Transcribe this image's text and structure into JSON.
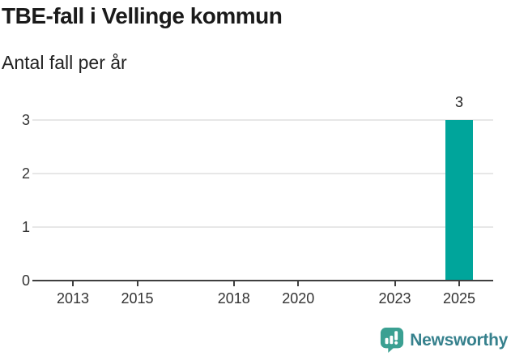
{
  "header": {
    "title": "TBE-fall i Vellinge kommun",
    "subtitle": "Antal fall per år"
  },
  "chart_data": {
    "type": "bar",
    "title": "TBE-fall i Vellinge kommun",
    "subtitle": "Antal fall per år",
    "xlabel": "",
    "ylabel": "Antal fall per år",
    "ylim": [
      0,
      3
    ],
    "y_ticks": [
      0,
      1,
      2,
      3
    ],
    "x_ticks": [
      2013,
      2015,
      2018,
      2020,
      2023,
      2025
    ],
    "x_domain": [
      2011.7,
      2026.1
    ],
    "grid": "horizontal-only",
    "legend": "none",
    "bars": [
      {
        "x": 2025,
        "value": 3,
        "label": "3"
      }
    ],
    "colors": {
      "bar": "#00a59b",
      "gridline": "#e7e7e7",
      "axis": "#3f3f3f",
      "tick_text": "#333333"
    }
  },
  "footer": {
    "brand": "Newsworthy",
    "icon": "newsworthy-speech-bubble-chart-icon",
    "icon_color": "#3ba092",
    "text_color": "#36818d"
  }
}
